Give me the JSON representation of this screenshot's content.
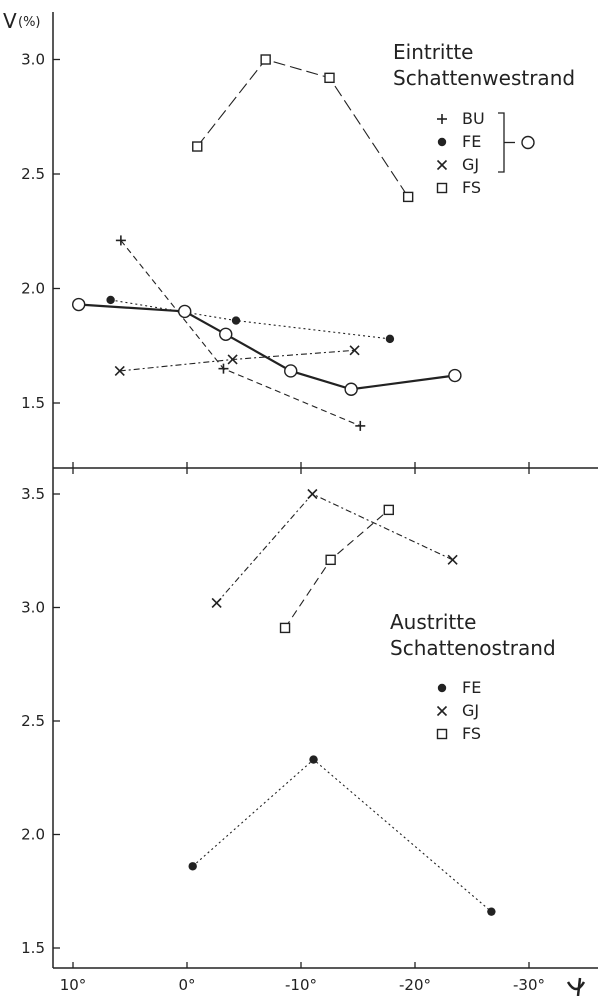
{
  "axis": {
    "y_label": "V",
    "y_unit": "(%)",
    "x_label": "ψ",
    "x_ticks": [
      "10°",
      "0°",
      "-10°",
      "-20°",
      "-30°"
    ]
  },
  "chart_data": [
    {
      "type": "line",
      "title": [
        "Eintritte",
        "Schattenwestrand"
      ],
      "xlim": [
        15,
        -35
      ],
      "ylim": [
        1.3,
        3.2
      ],
      "yticks": [
        "1.5",
        "2.0",
        "2.5",
        "3.0"
      ],
      "legend": {
        "entries": [
          {
            "marker": "plus",
            "label": "BU"
          },
          {
            "marker": "dot",
            "label": "FE"
          },
          {
            "marker": "cross",
            "label": "GJ"
          },
          {
            "marker": "square",
            "label": "FS"
          }
        ],
        "bracket_marker": "circle"
      },
      "series": [
        {
          "name": "BU",
          "marker": "plus",
          "dash": "6,4",
          "x": [
            5.8,
            -3.2,
            -15.2
          ],
          "y": [
            2.21,
            1.65,
            1.4
          ]
        },
        {
          "name": "FE",
          "marker": "dot",
          "dash": "2,3",
          "x": [
            6.7,
            -4.3,
            -17.8
          ],
          "y": [
            1.95,
            1.86,
            1.78
          ]
        },
        {
          "name": "GJ",
          "marker": "cross",
          "dash": "6,3,2,3",
          "x": [
            5.9,
            -4.0,
            -14.7
          ],
          "y": [
            1.64,
            1.69,
            1.73
          ]
        },
        {
          "name": "FS",
          "marker": "square",
          "dash": "12,5",
          "x": [
            -0.9,
            -6.9,
            -12.5,
            -19.4
          ],
          "y": [
            2.62,
            3.0,
            2.92,
            2.4
          ]
        },
        {
          "name": "",
          "marker": "circle",
          "dash": "",
          "x": [
            9.5,
            0.2,
            -3.4,
            -9.1,
            -14.4,
            -23.5
          ],
          "y": [
            1.93,
            1.9,
            1.8,
            1.64,
            1.56,
            1.62
          ]
        }
      ]
    },
    {
      "type": "line",
      "title": [
        "Austritte",
        "Schattenostrand"
      ],
      "xlim": [
        15,
        -35
      ],
      "ylim": [
        1.4,
        3.6
      ],
      "yticks": [
        "1.5",
        "2.0",
        "2.5",
        "3.0",
        "3.5"
      ],
      "legend": {
        "entries": [
          {
            "marker": "dot",
            "label": "FE"
          },
          {
            "marker": "cross",
            "label": "GJ"
          },
          {
            "marker": "square",
            "label": "FS"
          }
        ]
      },
      "series": [
        {
          "name": "FE",
          "marker": "dot",
          "dash": "2,3",
          "x": [
            -0.5,
            -11.1,
            -26.7
          ],
          "y": [
            1.86,
            2.33,
            1.66
          ]
        },
        {
          "name": "GJ",
          "marker": "cross",
          "dash": "6,3,2,3",
          "x": [
            -2.6,
            -11.0,
            -23.3
          ],
          "y": [
            3.02,
            3.5,
            3.21
          ]
        },
        {
          "name": "FS",
          "marker": "square",
          "dash": "8,5",
          "x": [
            -8.6,
            -12.6,
            -17.7
          ],
          "y": [
            2.91,
            3.21,
            3.43
          ]
        }
      ]
    }
  ]
}
